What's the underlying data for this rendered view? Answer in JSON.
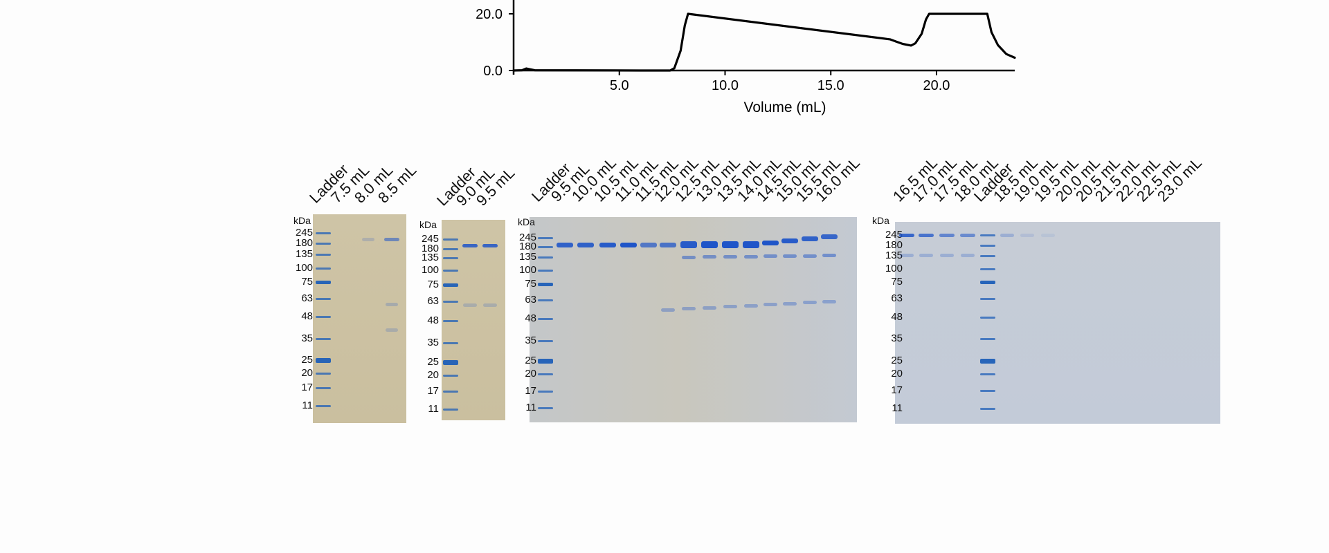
{
  "chart_data": {
    "type": "line",
    "title": "",
    "xlabel": "Volume (mL)",
    "ylabel": "",
    "x_ticks": [
      "5.0",
      "10.0",
      "15.0",
      "20.0"
    ],
    "y_ticks": [
      "0.0",
      "20.0"
    ],
    "xlim": [
      0,
      23.7
    ],
    "ylim": [
      0,
      20
    ],
    "series": [
      {
        "x": [
          0,
          0.4,
          0.6,
          1.0,
          6.0,
          7.4,
          7.6,
          7.9,
          8.1,
          8.25,
          17.8,
          18.1,
          18.4,
          18.8,
          19.0,
          19.3,
          19.5,
          19.65,
          22.4,
          22.6,
          22.9,
          23.3,
          23.7
        ],
        "y": [
          0.0,
          0.1,
          0.7,
          0.1,
          0.0,
          0.0,
          0.8,
          7.0,
          16.0,
          20.0,
          11.0,
          10.2,
          9.4,
          8.8,
          9.6,
          13.0,
          18.0,
          20.0,
          20.0,
          13.5,
          9.0,
          5.8,
          4.5
        ]
      }
    ]
  },
  "kda_label": "kDa",
  "gels": [
    {
      "lanes": [
        "Ladder",
        "7.5 mL",
        "8.0 mL",
        "8.5 mL"
      ],
      "markers": [
        "245",
        "180",
        "135",
        "100",
        "75",
        "63",
        "48",
        "35",
        "25",
        "20",
        "17",
        "11"
      ]
    },
    {
      "lanes": [
        "Ladder",
        "9.0 mL",
        "9.5 mL"
      ],
      "markers": [
        "245",
        "180",
        "135",
        "100",
        "75",
        "63",
        "48",
        "35",
        "25",
        "20",
        "17",
        "11"
      ]
    },
    {
      "lanes": [
        "Ladder",
        "9.5 mL",
        "10.0 mL",
        "10.5 mL",
        "11.0 mL",
        "11.5 mL",
        "12.0 mL",
        "12.5 mL",
        "13.0 mL",
        "13.5 mL",
        "14.0 mL",
        "14.5 mL",
        "15.0 mL",
        "15.5 mL",
        "16.0 mL"
      ],
      "markers": [
        "245",
        "180",
        "135",
        "100",
        "75",
        "63",
        "48",
        "35",
        "25",
        "20",
        "17",
        "11"
      ]
    },
    {
      "lanes": [
        "16.5 mL",
        "17.0 mL",
        "17.5 mL",
        "18.0 mL",
        "Ladder",
        "18.5 mL",
        "19.0 mL",
        "19.5 mL",
        "20.0 mL",
        "20.5 mL",
        "21.5 mL",
        "22.0 mL",
        "22.5 mL",
        "23.0 mL"
      ],
      "markers": [
        "245",
        "180",
        "135",
        "100",
        "75",
        "63",
        "48",
        "35",
        "25",
        "20",
        "17",
        "11"
      ]
    }
  ],
  "colors": {
    "gel_tan": "#cdc2a4",
    "gel_blue": "#c3cad6",
    "stain": "#1f55c8",
    "curve": "#000000"
  }
}
